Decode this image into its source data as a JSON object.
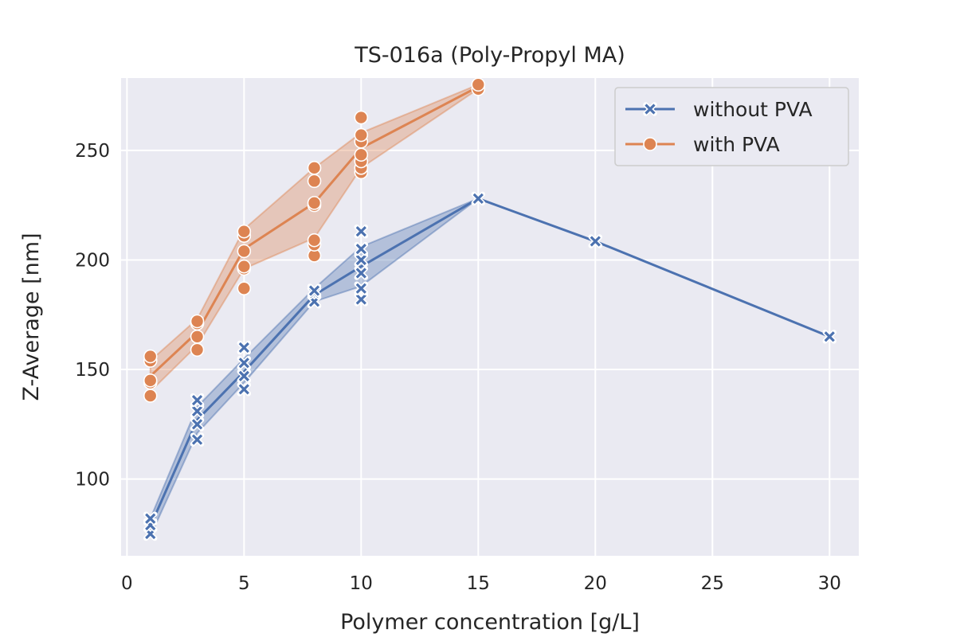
{
  "chart_data": {
    "type": "line",
    "title": "TS-016a (Poly-Propyl MA)",
    "xlabel": "Polymer concentration [g/L]",
    "ylabel": "Z-Average [nm]",
    "xlim": [
      -0.25,
      31.25
    ],
    "ylim": [
      65,
      283
    ],
    "xticks": [
      0,
      5,
      10,
      15,
      20,
      25,
      30
    ],
    "yticks": [
      100,
      150,
      200,
      250
    ],
    "grid": true,
    "legend_position": "top-right",
    "series": [
      {
        "name": "without PVA",
        "color": "#4c72b0",
        "marker": "x",
        "x": [
          1,
          3,
          5,
          8,
          10,
          15,
          20,
          30
        ],
        "y": [
          78.5,
          127.0,
          149.0,
          184.0,
          197.0,
          228.0,
          208.5,
          165.0
        ],
        "ci_low": [
          74.0,
          121.0,
          144.0,
          181.0,
          188.0,
          228.0,
          208.5,
          165.0
        ],
        "ci_high": [
          82.0,
          133.0,
          155.0,
          187.0,
          206.0,
          228.0,
          208.5,
          165.0
        ],
        "points": [
          [
            1,
            75
          ],
          [
            1,
            79
          ],
          [
            1,
            82
          ],
          [
            3,
            118
          ],
          [
            3,
            125
          ],
          [
            3,
            131
          ],
          [
            3,
            136
          ],
          [
            5,
            141
          ],
          [
            5,
            147
          ],
          [
            5,
            153
          ],
          [
            5,
            160
          ],
          [
            8,
            181
          ],
          [
            8,
            185
          ],
          [
            8,
            186
          ],
          [
            10,
            182
          ],
          [
            10,
            187
          ],
          [
            10,
            194
          ],
          [
            10,
            200
          ],
          [
            10,
            205
          ],
          [
            10,
            213
          ],
          [
            15,
            228
          ],
          [
            20,
            208.5
          ],
          [
            30,
            165
          ]
        ]
      },
      {
        "name": "with PVA",
        "color": "#dd8452",
        "marker": "o",
        "x": [
          1,
          3,
          5,
          8,
          10,
          15
        ],
        "y": [
          147.0,
          167.0,
          205.0,
          226.0,
          251.0,
          279.0
        ],
        "ci_low": [
          140.0,
          161.0,
          196.0,
          210.0,
          242.0,
          278.0
        ],
        "ci_high": [
          154.0,
          173.0,
          214.0,
          242.0,
          258.0,
          280.0
        ],
        "points": [
          [
            1,
            138
          ],
          [
            1,
            144
          ],
          [
            1,
            145
          ],
          [
            1,
            154
          ],
          [
            1,
            156
          ],
          [
            3,
            159
          ],
          [
            3,
            165
          ],
          [
            3,
            171
          ],
          [
            3,
            172
          ],
          [
            5,
            187
          ],
          [
            5,
            196
          ],
          [
            5,
            197
          ],
          [
            5,
            204
          ],
          [
            5,
            211
          ],
          [
            5,
            213
          ],
          [
            8,
            202
          ],
          [
            8,
            207
          ],
          [
            8,
            209
          ],
          [
            8,
            225
          ],
          [
            8,
            226
          ],
          [
            8,
            236
          ],
          [
            8,
            242
          ],
          [
            10,
            240
          ],
          [
            10,
            242
          ],
          [
            10,
            245
          ],
          [
            10,
            248
          ],
          [
            10,
            254
          ],
          [
            10,
            257
          ],
          [
            10,
            265
          ],
          [
            15,
            278
          ],
          [
            15,
            280
          ]
        ]
      }
    ]
  }
}
